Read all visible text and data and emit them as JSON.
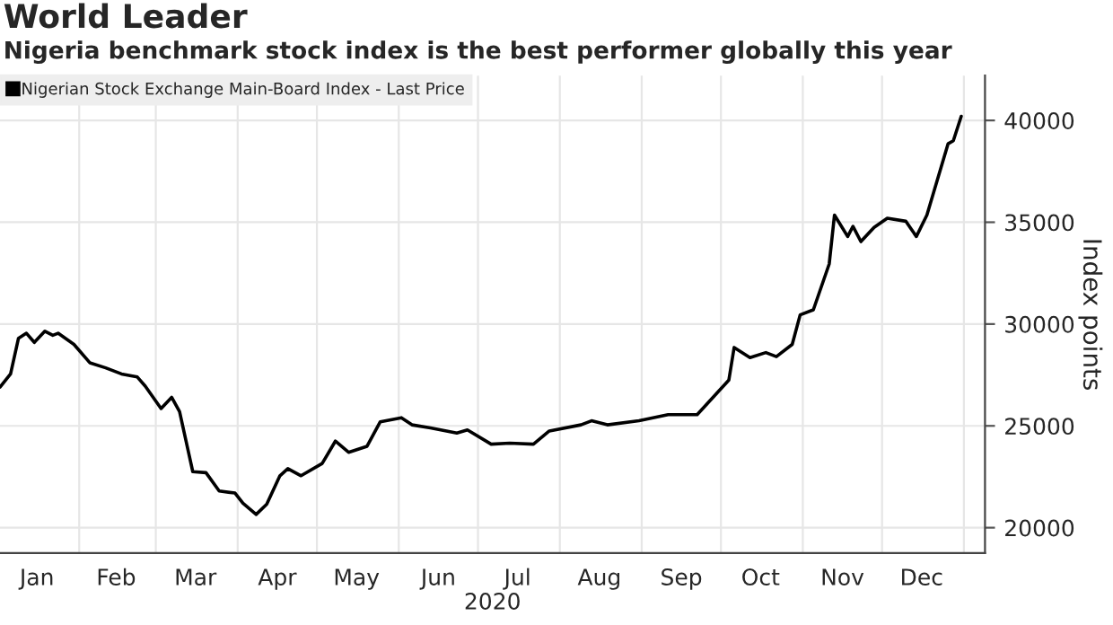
{
  "chart_data": {
    "type": "line",
    "title": "World Leader",
    "subtitle": "Nigeria benchmark stock index is the best performer globally this year",
    "xlabel": "2020",
    "ylabel": "Index points",
    "x": [
      "2020-01-02",
      "2020-01-06",
      "2020-01-09",
      "2020-01-12",
      "2020-01-15",
      "2020-01-19",
      "2020-01-22",
      "2020-01-24",
      "2020-01-30",
      "2020-02-05",
      "2020-02-11",
      "2020-02-17",
      "2020-02-23",
      "2020-02-26",
      "2020-03-03",
      "2020-03-07",
      "2020-03-10",
      "2020-03-15",
      "2020-03-20",
      "2020-03-25",
      "2020-03-31",
      "2020-04-03",
      "2020-04-08",
      "2020-04-12",
      "2020-04-17",
      "2020-04-20",
      "2020-04-25",
      "2020-05-03",
      "2020-05-08",
      "2020-05-13",
      "2020-05-20",
      "2020-05-25",
      "2020-06-02",
      "2020-06-06",
      "2020-06-13",
      "2020-06-23",
      "2020-06-27",
      "2020-07-06",
      "2020-07-13",
      "2020-07-22",
      "2020-07-28",
      "2020-08-09",
      "2020-08-13",
      "2020-08-19",
      "2020-08-31",
      "2020-09-11",
      "2020-09-22",
      "2020-09-28",
      "2020-10-04",
      "2020-10-06",
      "2020-10-12",
      "2020-10-18",
      "2020-10-22",
      "2020-10-28",
      "2020-10-31",
      "2020-11-05",
      "2020-11-11",
      "2020-11-13",
      "2020-11-18",
      "2020-11-20",
      "2020-11-23",
      "2020-11-28",
      "2020-12-03",
      "2020-12-10",
      "2020-12-14",
      "2020-12-18",
      "2020-12-26",
      "2020-12-28",
      "2020-12-31"
    ],
    "series": [
      {
        "name": "Nigerian Stock Exchange Main-Board Index - Last Price",
        "color": "#000000",
        "values": [
          26900,
          27550,
          29300,
          29550,
          29100,
          29650,
          29450,
          29550,
          29000,
          28100,
          27850,
          27550,
          27400,
          26950,
          25850,
          26400,
          25700,
          22750,
          22700,
          21800,
          21700,
          21200,
          20650,
          21150,
          22550,
          22900,
          22550,
          23150,
          24250,
          23700,
          24000,
          25200,
          25400,
          25050,
          24900,
          24650,
          24800,
          24100,
          24150,
          24100,
          24750,
          25050,
          25250,
          25050,
          25250,
          25550,
          25550,
          26400,
          27250,
          28850,
          28350,
          28600,
          28400,
          29000,
          30450,
          30700,
          32950,
          35350,
          34300,
          34800,
          34050,
          34750,
          35200,
          35050,
          34300,
          35350,
          38850,
          39000,
          40200
        ]
      }
    ],
    "xlim": [
      "2020-01-02",
      "2021-01-09"
    ],
    "xticks": [
      {
        "value": "2020-02-01",
        "label": null
      },
      {
        "value": "2020-03-01",
        "label": null
      },
      {
        "value": "2020-04-01",
        "label": null
      },
      {
        "value": "2020-05-01",
        "label": null
      },
      {
        "value": "2020-06-01",
        "label": null
      },
      {
        "value": "2020-07-01",
        "label": null
      },
      {
        "value": "2020-08-01",
        "label": null
      },
      {
        "value": "2020-09-01",
        "label": null
      },
      {
        "value": "2020-10-01",
        "label": null
      },
      {
        "value": "2020-11-01",
        "label": null
      },
      {
        "value": "2020-12-01",
        "label": null
      },
      {
        "value": "2021-01-01",
        "label": null
      },
      {
        "value": "2020-01-16",
        "label": "Jan"
      },
      {
        "value": "2020-02-15",
        "label": "Feb"
      },
      {
        "value": "2020-03-16",
        "label": "Mar"
      },
      {
        "value": "2020-04-16",
        "label": "Apr"
      },
      {
        "value": "2020-05-16",
        "label": "May"
      },
      {
        "value": "2020-06-16",
        "label": "Jun"
      },
      {
        "value": "2020-07-16",
        "label": "Jul"
      },
      {
        "value": "2020-08-16",
        "label": "Aug"
      },
      {
        "value": "2020-09-16",
        "label": "Sep"
      },
      {
        "value": "2020-10-16",
        "label": "Oct"
      },
      {
        "value": "2020-11-16",
        "label": "Nov"
      },
      {
        "value": "2020-12-16",
        "label": "Dec"
      }
    ],
    "ylim": [
      18750,
      42200
    ],
    "yticks": [
      20000,
      25000,
      30000,
      35000,
      40000
    ],
    "grid": true,
    "legend": "top left",
    "marker": "none",
    "line_style": "solid"
  }
}
